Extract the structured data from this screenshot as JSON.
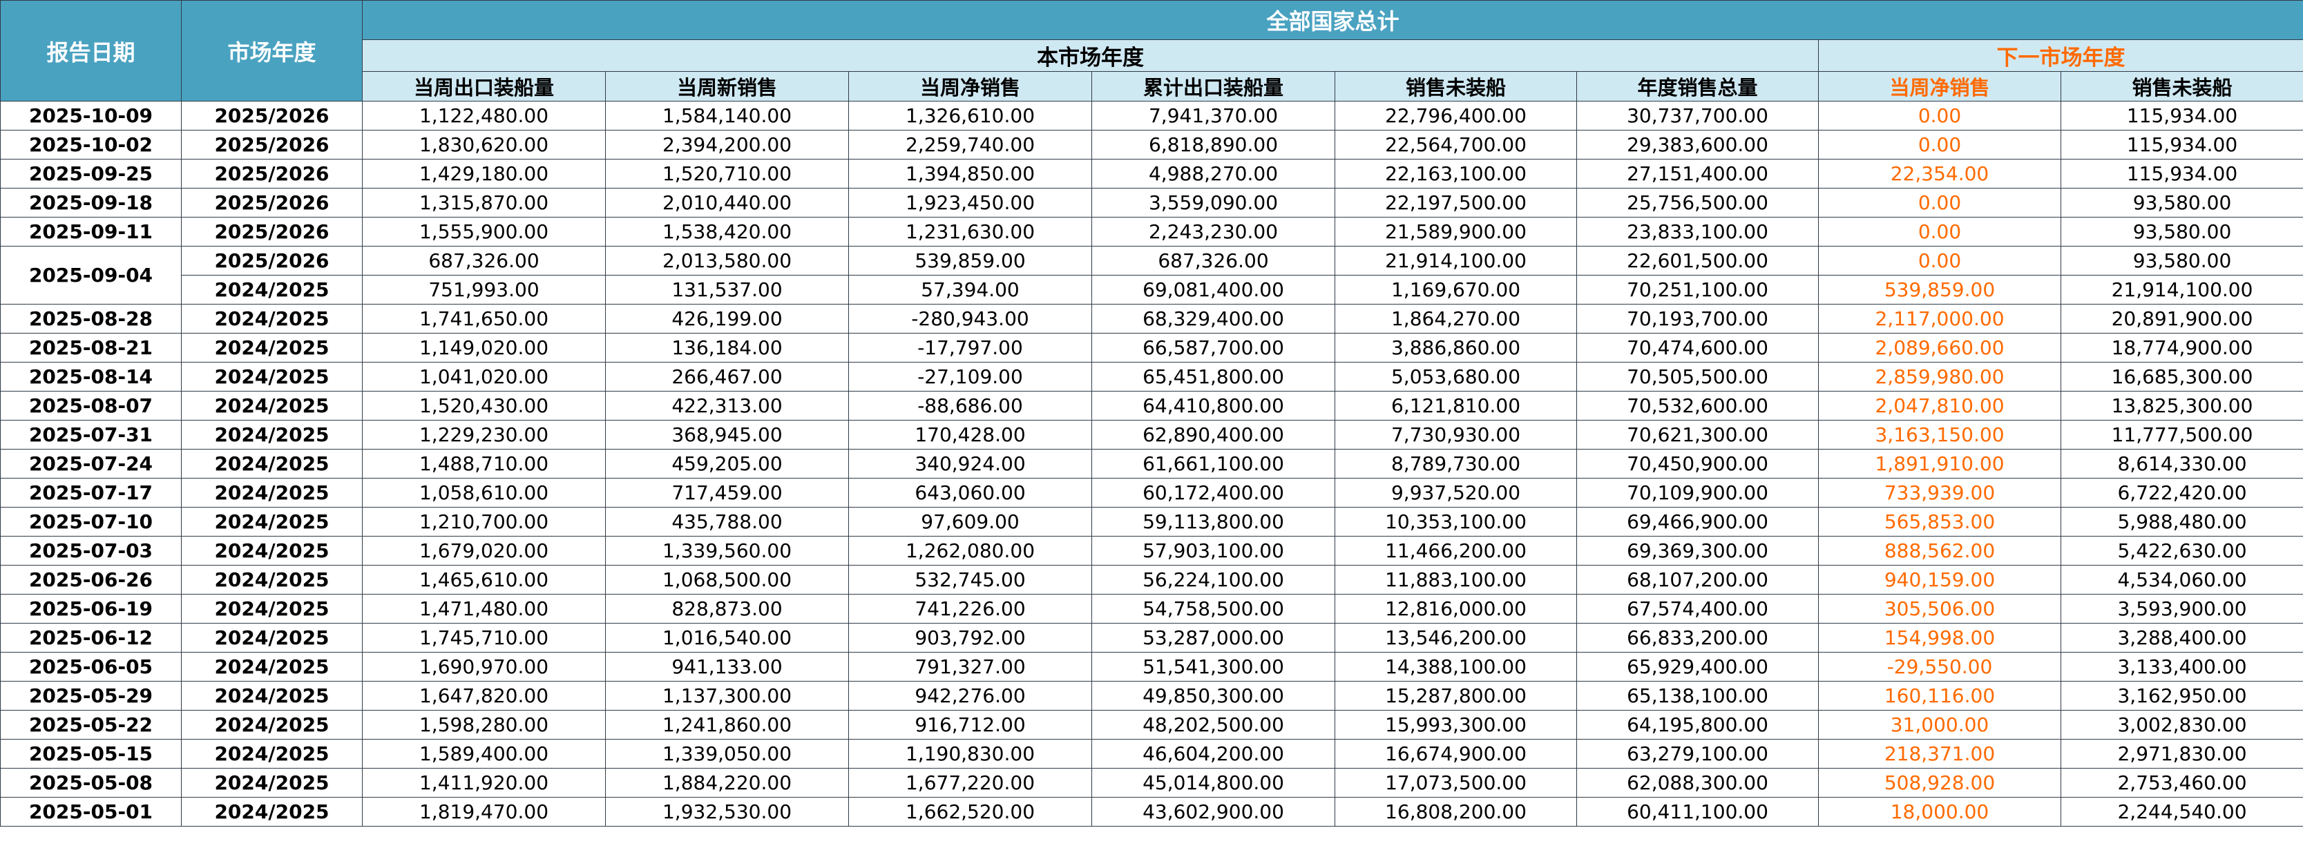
{
  "header": {
    "report_date": "报告日期",
    "market_year": "市场年度",
    "all_countries_total": "全部国家总计",
    "this_market_year": "本市场年度",
    "next_market_year": "下一市场年度",
    "this_year_columns": [
      "当周出口装船量",
      "当周新销售",
      "当周净销售",
      "累计出口装船量",
      "销售未装船",
      "年度销售总量"
    ],
    "next_year_columns": [
      "当周净销售",
      "销售未装船"
    ]
  },
  "rows": [
    {
      "date": "2025-10-09",
      "my": "2025/2026",
      "v": [
        "1,122,480.00",
        "1,584,140.00",
        "1,326,610.00",
        "7,941,370.00",
        "22,796,400.00",
        "30,737,700.00"
      ],
      "n": [
        "0.00",
        "115,934.00"
      ]
    },
    {
      "date": "2025-10-02",
      "my": "2025/2026",
      "v": [
        "1,830,620.00",
        "2,394,200.00",
        "2,259,740.00",
        "6,818,890.00",
        "22,564,700.00",
        "29,383,600.00"
      ],
      "n": [
        "0.00",
        "115,934.00"
      ]
    },
    {
      "date": "2025-09-25",
      "my": "2025/2026",
      "v": [
        "1,429,180.00",
        "1,520,710.00",
        "1,394,850.00",
        "4,988,270.00",
        "22,163,100.00",
        "27,151,400.00"
      ],
      "n": [
        "22,354.00",
        "115,934.00"
      ]
    },
    {
      "date": "2025-09-18",
      "my": "2025/2026",
      "v": [
        "1,315,870.00",
        "2,010,440.00",
        "1,923,450.00",
        "3,559,090.00",
        "22,197,500.00",
        "25,756,500.00"
      ],
      "n": [
        "0.00",
        "93,580.00"
      ]
    },
    {
      "date": "2025-09-11",
      "my": "2025/2026",
      "v": [
        "1,555,900.00",
        "1,538,420.00",
        "1,231,630.00",
        "2,243,230.00",
        "21,589,900.00",
        "23,833,100.00"
      ],
      "n": [
        "0.00",
        "93,580.00"
      ]
    },
    {
      "date": "2025-09-04",
      "my": "2025/2026",
      "v": [
        "687,326.00",
        "2,013,580.00",
        "539,859.00",
        "687,326.00",
        "21,914,100.00",
        "22,601,500.00"
      ],
      "n": [
        "0.00",
        "93,580.00"
      ]
    },
    {
      "date": "",
      "my": "2024/2025",
      "v": [
        "751,993.00",
        "131,537.00",
        "57,394.00",
        "69,081,400.00",
        "1,169,670.00",
        "70,251,100.00"
      ],
      "n": [
        "539,859.00",
        "21,914,100.00"
      ]
    },
    {
      "date": "2025-08-28",
      "my": "2024/2025",
      "v": [
        "1,741,650.00",
        "426,199.00",
        "-280,943.00",
        "68,329,400.00",
        "1,864,270.00",
        "70,193,700.00"
      ],
      "n": [
        "2,117,000.00",
        "20,891,900.00"
      ]
    },
    {
      "date": "2025-08-21",
      "my": "2024/2025",
      "v": [
        "1,149,020.00",
        "136,184.00",
        "-17,797.00",
        "66,587,700.00",
        "3,886,860.00",
        "70,474,600.00"
      ],
      "n": [
        "2,089,660.00",
        "18,774,900.00"
      ]
    },
    {
      "date": "2025-08-14",
      "my": "2024/2025",
      "v": [
        "1,041,020.00",
        "266,467.00",
        "-27,109.00",
        "65,451,800.00",
        "5,053,680.00",
        "70,505,500.00"
      ],
      "n": [
        "2,859,980.00",
        "16,685,300.00"
      ]
    },
    {
      "date": "2025-08-07",
      "my": "2024/2025",
      "v": [
        "1,520,430.00",
        "422,313.00",
        "-88,686.00",
        "64,410,800.00",
        "6,121,810.00",
        "70,532,600.00"
      ],
      "n": [
        "2,047,810.00",
        "13,825,300.00"
      ]
    },
    {
      "date": "2025-07-31",
      "my": "2024/2025",
      "v": [
        "1,229,230.00",
        "368,945.00",
        "170,428.00",
        "62,890,400.00",
        "7,730,930.00",
        "70,621,300.00"
      ],
      "n": [
        "3,163,150.00",
        "11,777,500.00"
      ]
    },
    {
      "date": "2025-07-24",
      "my": "2024/2025",
      "v": [
        "1,488,710.00",
        "459,205.00",
        "340,924.00",
        "61,661,100.00",
        "8,789,730.00",
        "70,450,900.00"
      ],
      "n": [
        "1,891,910.00",
        "8,614,330.00"
      ]
    },
    {
      "date": "2025-07-17",
      "my": "2024/2025",
      "v": [
        "1,058,610.00",
        "717,459.00",
        "643,060.00",
        "60,172,400.00",
        "9,937,520.00",
        "70,109,900.00"
      ],
      "n": [
        "733,939.00",
        "6,722,420.00"
      ]
    },
    {
      "date": "2025-07-10",
      "my": "2024/2025",
      "v": [
        "1,210,700.00",
        "435,788.00",
        "97,609.00",
        "59,113,800.00",
        "10,353,100.00",
        "69,466,900.00"
      ],
      "n": [
        "565,853.00",
        "5,988,480.00"
      ]
    },
    {
      "date": "2025-07-03",
      "my": "2024/2025",
      "v": [
        "1,679,020.00",
        "1,339,560.00",
        "1,262,080.00",
        "57,903,100.00",
        "11,466,200.00",
        "69,369,300.00"
      ],
      "n": [
        "888,562.00",
        "5,422,630.00"
      ]
    },
    {
      "date": "2025-06-26",
      "my": "2024/2025",
      "v": [
        "1,465,610.00",
        "1,068,500.00",
        "532,745.00",
        "56,224,100.00",
        "11,883,100.00",
        "68,107,200.00"
      ],
      "n": [
        "940,159.00",
        "4,534,060.00"
      ]
    },
    {
      "date": "2025-06-19",
      "my": "2024/2025",
      "v": [
        "1,471,480.00",
        "828,873.00",
        "741,226.00",
        "54,758,500.00",
        "12,816,000.00",
        "67,574,400.00"
      ],
      "n": [
        "305,506.00",
        "3,593,900.00"
      ]
    },
    {
      "date": "2025-06-12",
      "my": "2024/2025",
      "v": [
        "1,745,710.00",
        "1,016,540.00",
        "903,792.00",
        "53,287,000.00",
        "13,546,200.00",
        "66,833,200.00"
      ],
      "n": [
        "154,998.00",
        "3,288,400.00"
      ]
    },
    {
      "date": "2025-06-05",
      "my": "2024/2025",
      "v": [
        "1,690,970.00",
        "941,133.00",
        "791,327.00",
        "51,541,300.00",
        "14,388,100.00",
        "65,929,400.00"
      ],
      "n": [
        "-29,550.00",
        "3,133,400.00"
      ]
    },
    {
      "date": "2025-05-29",
      "my": "2024/2025",
      "v": [
        "1,647,820.00",
        "1,137,300.00",
        "942,276.00",
        "49,850,300.00",
        "15,287,800.00",
        "65,138,100.00"
      ],
      "n": [
        "160,116.00",
        "3,162,950.00"
      ]
    },
    {
      "date": "2025-05-22",
      "my": "2024/2025",
      "v": [
        "1,598,280.00",
        "1,241,860.00",
        "916,712.00",
        "48,202,500.00",
        "15,993,300.00",
        "64,195,800.00"
      ],
      "n": [
        "31,000.00",
        "3,002,830.00"
      ]
    },
    {
      "date": "2025-05-15",
      "my": "2024/2025",
      "v": [
        "1,589,400.00",
        "1,339,050.00",
        "1,190,830.00",
        "46,604,200.00",
        "16,674,900.00",
        "63,279,100.00"
      ],
      "n": [
        "218,371.00",
        "2,971,830.00"
      ]
    },
    {
      "date": "2025-05-08",
      "my": "2024/2025",
      "v": [
        "1,411,920.00",
        "1,884,220.00",
        "1,677,220.00",
        "45,014,800.00",
        "17,073,500.00",
        "62,088,300.00"
      ],
      "n": [
        "508,928.00",
        "2,753,460.00"
      ]
    },
    {
      "date": "2025-05-01",
      "my": "2024/2025",
      "v": [
        "1,819,470.00",
        "1,932,530.00",
        "1,662,520.00",
        "43,602,900.00",
        "16,808,200.00",
        "60,411,100.00"
      ],
      "n": [
        "18,000.00",
        "2,244,540.00"
      ]
    }
  ]
}
